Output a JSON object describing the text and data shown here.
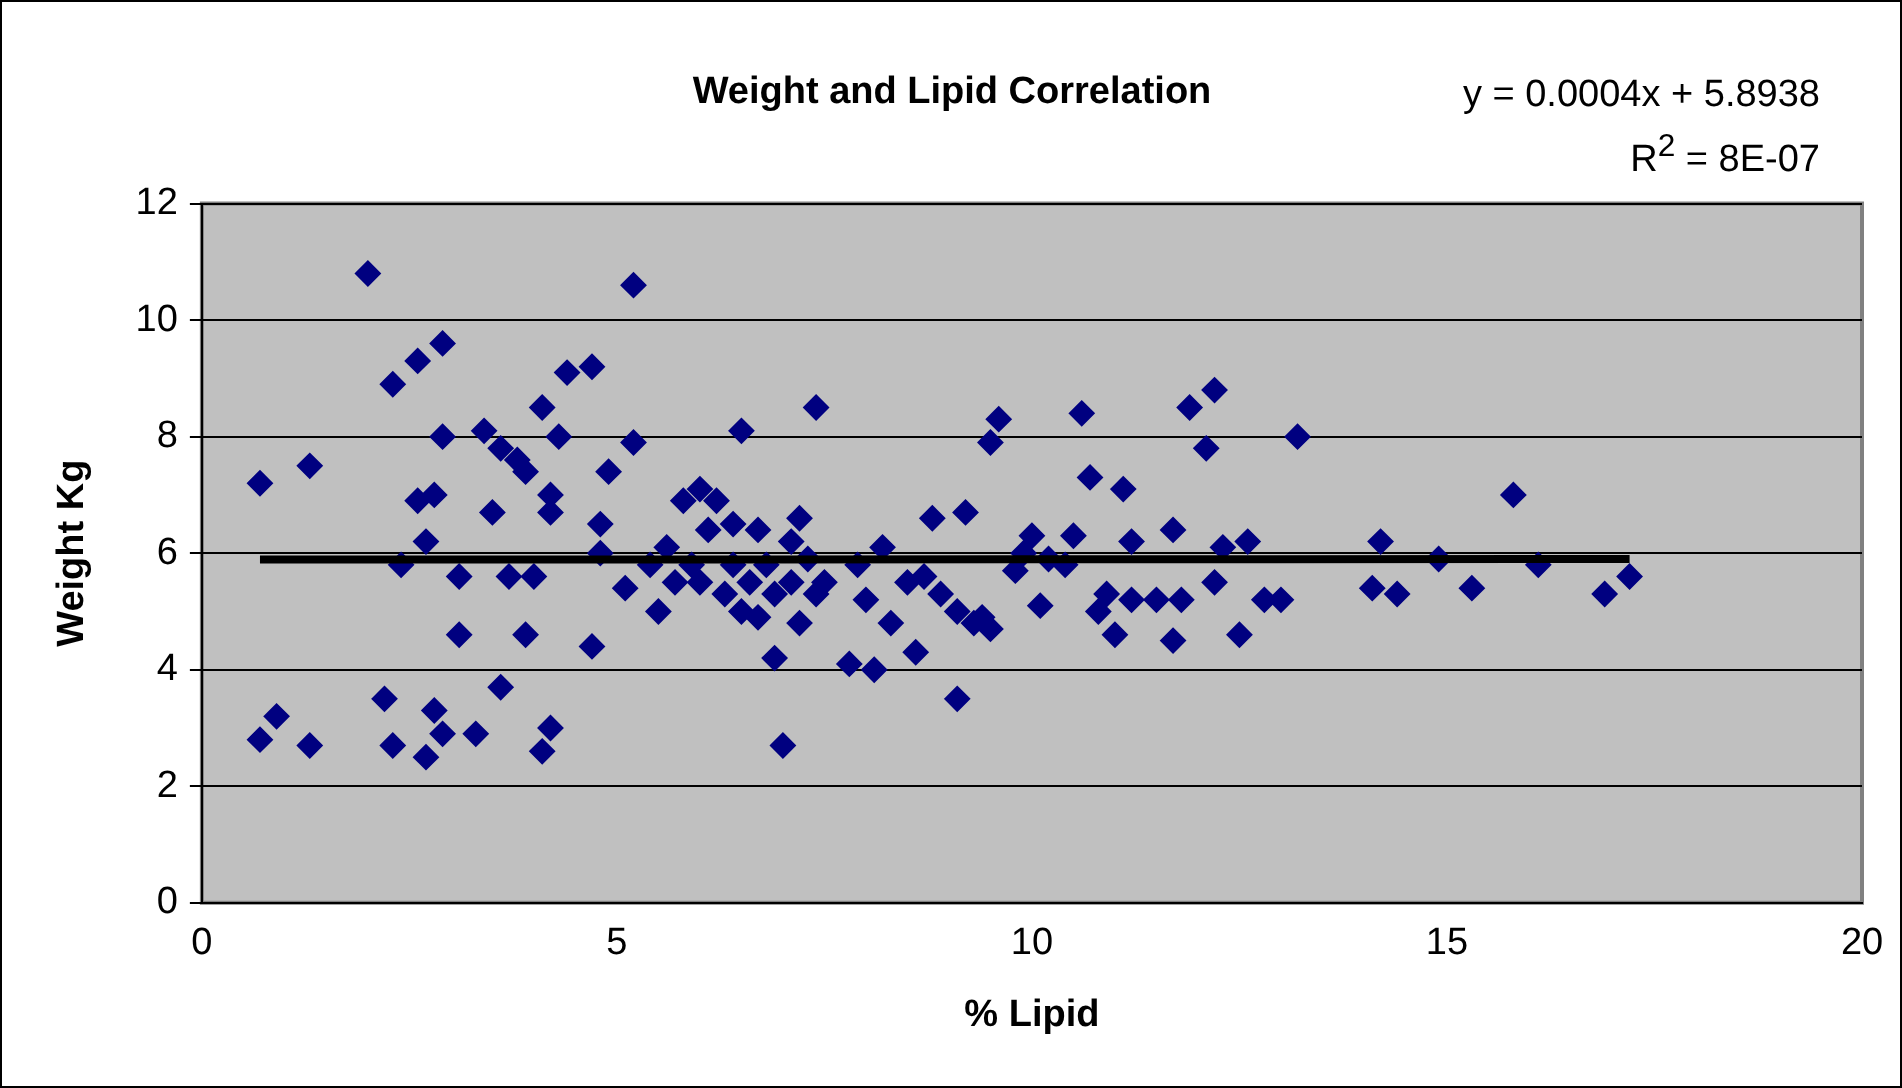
{
  "chart_data": {
    "type": "scatter",
    "title": "Weight and Lipid Correlation",
    "xlabel": "% Lipid",
    "ylabel": "Weight Kg",
    "annotations": [
      "y = 0.0004x + 5.8938",
      "R$^{2}$ = 8E-07"
    ],
    "xlim": [
      0,
      20
    ],
    "xticks": [
      0,
      5,
      10,
      15,
      20
    ],
    "ylim": [
      0,
      12
    ],
    "yticks": [
      0,
      2,
      4,
      6,
      8,
      10,
      12
    ],
    "grid": "y",
    "legend": false,
    "marker": "diamond",
    "series": [
      {
        "color": "#000080",
        "x": [
          0.7,
          0.7,
          0.9,
          1.3,
          1.3,
          2.0,
          2.2,
          2.3,
          2.3,
          2.4,
          2.6,
          2.6,
          2.7,
          2.7,
          2.8,
          2.8,
          2.9,
          2.9,
          2.9,
          3.1,
          3.1,
          3.3,
          3.4,
          3.5,
          3.6,
          3.6,
          3.7,
          3.8,
          3.9,
          3.9,
          4.0,
          4.1,
          4.1,
          4.2,
          4.2,
          4.2,
          4.3,
          4.4,
          4.7,
          4.7,
          4.8,
          4.9,
          4.8,
          5.1,
          5.2,
          5.2,
          5.4,
          5.5,
          5.6,
          5.7,
          5.8,
          5.9,
          6.0,
          6.0,
          6.1,
          6.2,
          6.3,
          6.4,
          6.4,
          6.5,
          6.5,
          6.6,
          6.7,
          6.7,
          6.8,
          6.9,
          6.9,
          7.0,
          7.1,
          7.1,
          7.2,
          7.2,
          7.3,
          7.4,
          7.4,
          7.5,
          7.8,
          7.9,
          8.0,
          8.1,
          8.2,
          8.3,
          8.5,
          8.6,
          8.7,
          8.8,
          8.9,
          9.1,
          9.1,
          9.2,
          9.3,
          9.4,
          9.5,
          9.5,
          9.6,
          9.8,
          9.9,
          10.0,
          10.1,
          10.2,
          10.4,
          10.5,
          10.6,
          10.7,
          10.8,
          10.9,
          11.0,
          11.1,
          11.2,
          11.2,
          11.5,
          11.7,
          11.7,
          11.8,
          11.9,
          12.1,
          12.2,
          12.2,
          12.3,
          12.5,
          12.6,
          12.8,
          13.0,
          13.2,
          14.1,
          14.2,
          14.4,
          14.9,
          15.3,
          15.8,
          16.1,
          16.9,
          17.2
        ],
        "values": [
          7.2,
          2.8,
          3.2,
          7.5,
          2.7,
          10.8,
          3.5,
          8.9,
          2.7,
          5.8,
          9.3,
          6.9,
          6.2,
          2.5,
          7.0,
          3.3,
          9.6,
          8.0,
          2.9,
          5.6,
          4.6,
          2.9,
          8.1,
          6.7,
          7.8,
          3.7,
          5.6,
          7.6,
          7.4,
          4.6,
          5.6,
          8.5,
          2.6,
          7.0,
          6.7,
          3.0,
          8.0,
          9.1,
          9.2,
          4.4,
          6.5,
          7.4,
          6.0,
          5.4,
          10.6,
          7.9,
          5.8,
          5.0,
          6.1,
          5.5,
          6.9,
          5.8,
          5.5,
          7.1,
          6.4,
          6.9,
          5.3,
          6.5,
          5.8,
          5.0,
          8.1,
          5.5,
          4.9,
          6.4,
          5.8,
          4.2,
          5.3,
          2.7,
          6.2,
          5.5,
          6.6,
          4.8,
          5.9,
          5.3,
          8.5,
          5.5,
          4.1,
          5.8,
          5.2,
          4.0,
          6.1,
          4.8,
          5.5,
          4.3,
          5.6,
          6.6,
          5.3,
          5.0,
          3.5,
          6.7,
          4.8,
          4.9,
          4.7,
          7.9,
          8.3,
          5.7,
          6.0,
          6.3,
          5.1,
          5.9,
          5.8,
          6.3,
          8.4,
          7.3,
          5.0,
          5.3,
          4.6,
          7.1,
          6.2,
          5.2,
          5.2,
          4.5,
          6.4,
          5.2,
          8.5,
          7.8,
          8.8,
          5.5,
          6.1,
          4.6,
          6.2,
          5.2,
          5.2,
          8.0,
          5.4,
          6.2,
          5.3,
          5.9,
          5.4,
          7.0,
          5.8,
          5.3,
          5.6
        ]
      },
      {
        "type": "line",
        "color": "#000000",
        "marker": "none",
        "x": [
          0.7,
          17.2
        ],
        "values": [
          5.89,
          5.9
        ]
      }
    ]
  }
}
